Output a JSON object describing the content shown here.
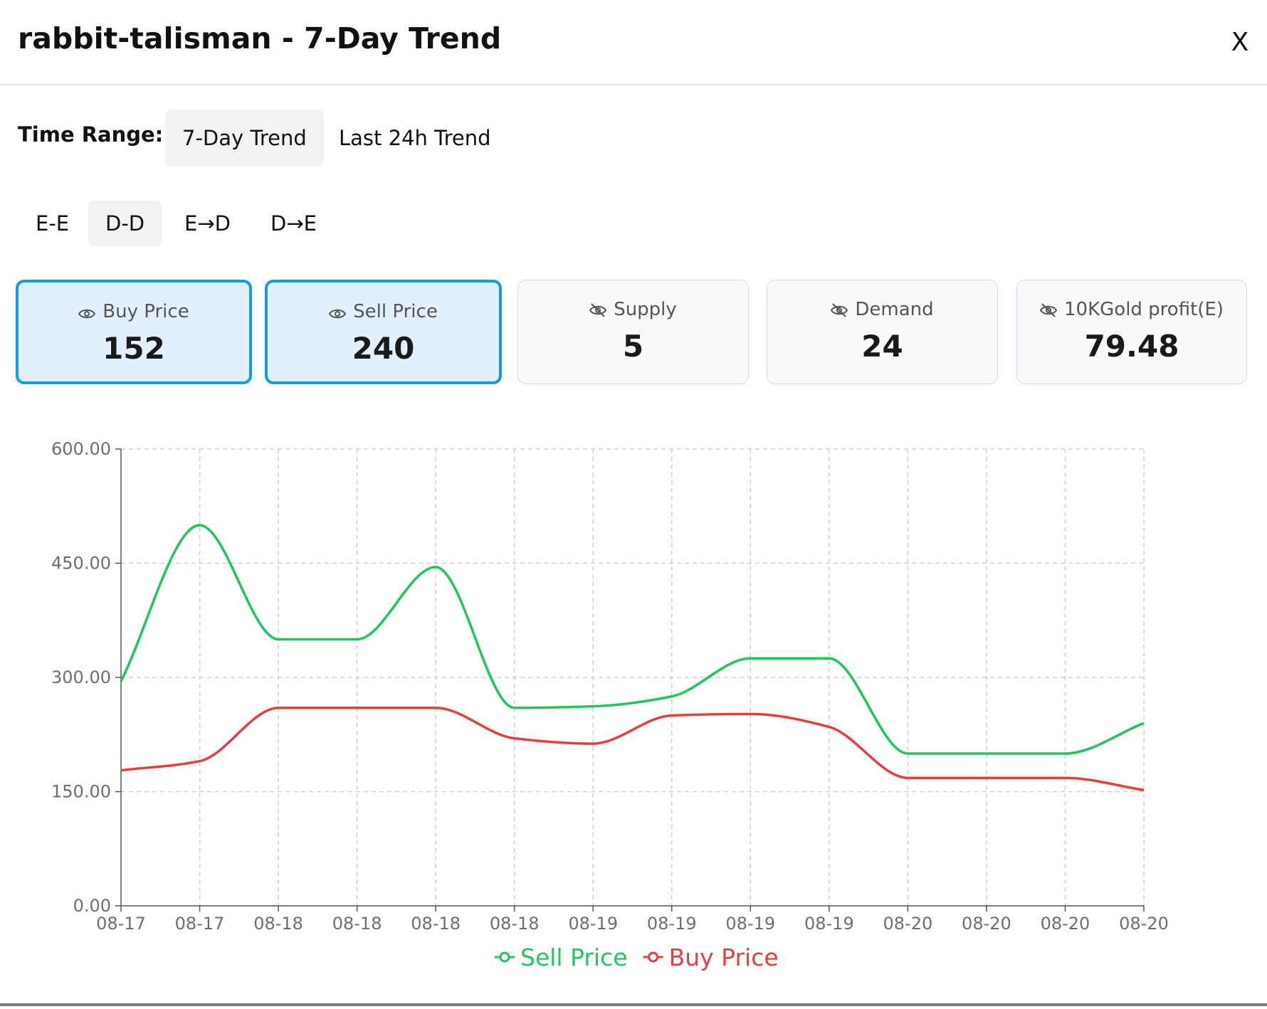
{
  "header": {
    "title": "rabbit-talisman - 7-Day Trend",
    "close_label": "X"
  },
  "time_range": {
    "label": "Time Range:",
    "options": [
      "7-Day Trend",
      "Last 24h Trend"
    ],
    "selected": "7-Day Trend"
  },
  "modes": {
    "options": [
      "E-E",
      "D-D",
      "E→D",
      "D→E"
    ],
    "selected": "D-D"
  },
  "cards": [
    {
      "label": "Buy Price",
      "value": "152",
      "visible": true,
      "icon": "eye-icon"
    },
    {
      "label": "Sell Price",
      "value": "240",
      "visible": true,
      "icon": "eye-icon"
    },
    {
      "label": "Supply",
      "value": "5",
      "visible": false,
      "icon": "eye-off-icon"
    },
    {
      "label": "Demand",
      "value": "24",
      "visible": false,
      "icon": "eye-off-icon"
    },
    {
      "label": "10KGold profit(E)",
      "value": "79.48",
      "visible": false,
      "icon": "eye-off-icon"
    }
  ],
  "colors": {
    "sell": "#22c55e",
    "buy": "#e53e3e",
    "selected_border": "#149be0",
    "selected_bg": "#e1f0fc"
  },
  "chart_data": {
    "type": "line",
    "x": [
      "08-17",
      "08-17",
      "08-18",
      "08-18",
      "08-18",
      "08-18",
      "08-19",
      "08-19",
      "08-19",
      "08-19",
      "08-20",
      "08-20",
      "08-20",
      "08-20"
    ],
    "series": [
      {
        "name": "Sell Price",
        "color": "#22c55e",
        "values": [
          295,
          500,
          350,
          350,
          445,
          260,
          262,
          275,
          325,
          325,
          200,
          200,
          200,
          240
        ]
      },
      {
        "name": "Buy Price",
        "color": "#e53e3e",
        "values": [
          178,
          190,
          260,
          260,
          260,
          220,
          213,
          250,
          252,
          235,
          168,
          168,
          168,
          152
        ]
      }
    ],
    "yticks": [
      "0.00",
      "150.00",
      "300.00",
      "450.00",
      "600.00"
    ],
    "ylim": [
      0,
      600
    ],
    "grid": true,
    "legend": "bottom-center",
    "smooth": true
  }
}
